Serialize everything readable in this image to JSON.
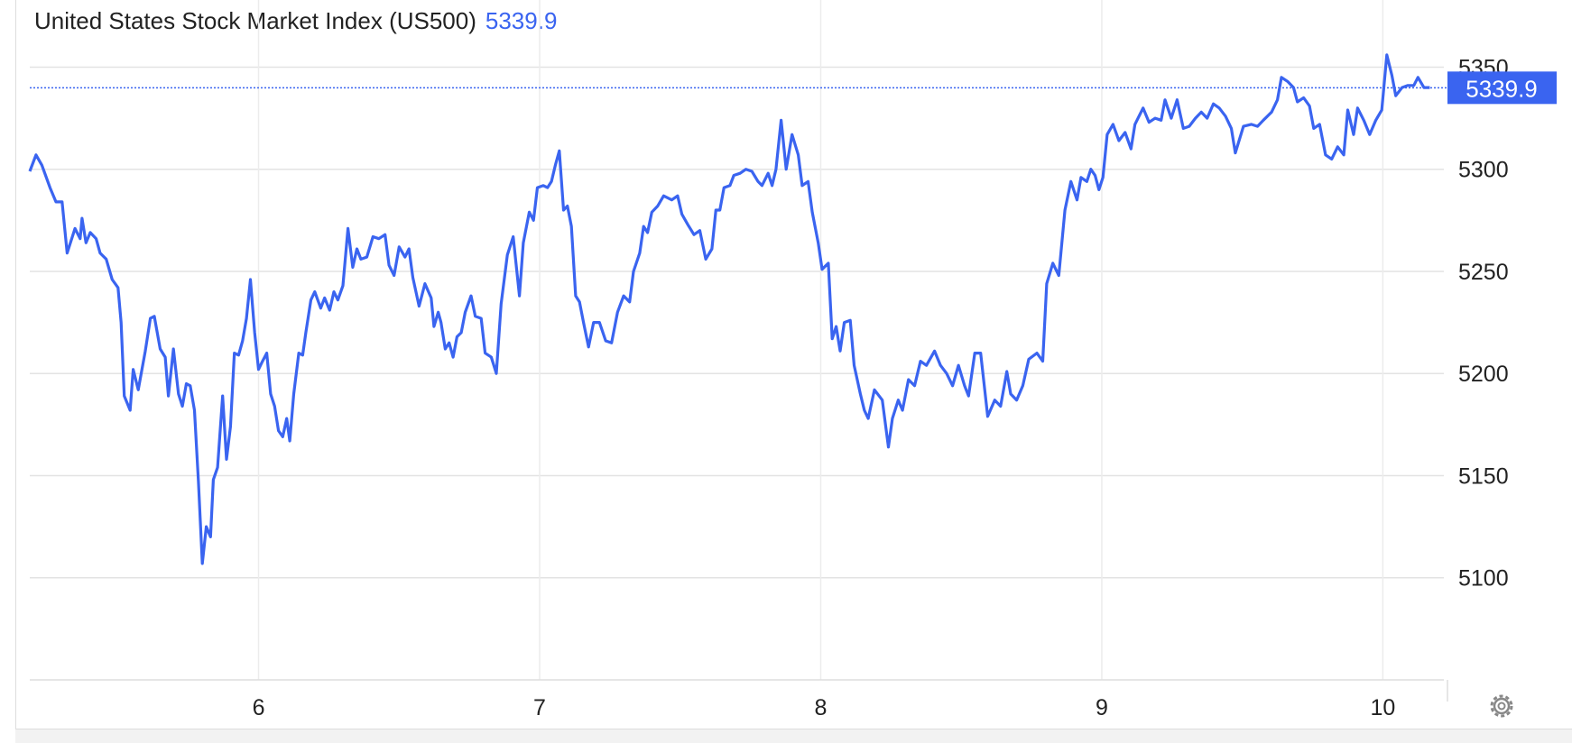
{
  "chart_data": {
    "type": "line",
    "title": "United States Stock Market Index (US500)",
    "last_value": 5339.9,
    "color": "#3a64f0",
    "grid": true,
    "xlim": [
      5.186,
      10.217
    ],
    "xticks": [
      6,
      7,
      8,
      9,
      10
    ],
    "ylim": [
      5050,
      5363
    ],
    "yticks": [
      5100,
      5150,
      5200,
      5250,
      5300,
      5350
    ],
    "series": [
      {
        "name": "US500",
        "color": "#3a64f0",
        "x": [
          5.186,
          5.208,
          5.229,
          5.258,
          5.279,
          5.301,
          5.319,
          5.347,
          5.365,
          5.372,
          5.386,
          5.401,
          5.422,
          5.436,
          5.458,
          5.479,
          5.5,
          5.511,
          5.522,
          5.543,
          5.554,
          5.572,
          5.597,
          5.615,
          5.629,
          5.65,
          5.668,
          5.679,
          5.697,
          5.715,
          5.729,
          5.743,
          5.757,
          5.772,
          5.786,
          5.8,
          5.814,
          5.829,
          5.839,
          5.854,
          5.872,
          5.886,
          5.9,
          5.914,
          5.929,
          5.943,
          5.957,
          5.971,
          5.986,
          6.0,
          6.014,
          6.029,
          6.043,
          6.057,
          6.071,
          6.086,
          6.1,
          6.111,
          6.125,
          6.143,
          6.157,
          6.168,
          6.186,
          6.2,
          6.221,
          6.235,
          6.253,
          6.268,
          6.282,
          6.3,
          6.318,
          6.335,
          6.35,
          6.364,
          6.385,
          6.407,
          6.428,
          6.45,
          6.464,
          6.482,
          6.5,
          6.521,
          6.535,
          6.549,
          6.571,
          6.592,
          6.614,
          6.624,
          6.639,
          6.649,
          6.664,
          6.678,
          6.692,
          6.706,
          6.721,
          6.735,
          6.756,
          6.771,
          6.792,
          6.806,
          6.828,
          6.846,
          6.863,
          6.885,
          6.906,
          6.928,
          6.942,
          6.963,
          6.978,
          6.992,
          7.013,
          7.028,
          7.042,
          7.056,
          7.07,
          7.085,
          7.099,
          7.113,
          7.128,
          7.142,
          7.156,
          7.174,
          7.192,
          7.213,
          7.235,
          7.256,
          7.277,
          7.299,
          7.32,
          7.334,
          7.356,
          7.37,
          7.384,
          7.399,
          7.42,
          7.441,
          7.47,
          7.491,
          7.506,
          7.527,
          7.549,
          7.57,
          7.591,
          7.613,
          7.627,
          7.641,
          7.656,
          7.677,
          7.691,
          7.713,
          7.734,
          7.755,
          7.777,
          7.791,
          7.813,
          7.827,
          7.841,
          7.859,
          7.877,
          7.898,
          7.92,
          7.934,
          7.955,
          7.97,
          7.991,
          8.005,
          8.027,
          8.041,
          8.055,
          8.069,
          8.084,
          8.105,
          8.119,
          8.141,
          8.155,
          8.169,
          8.191,
          8.219,
          8.241,
          8.255,
          8.276,
          8.291,
          8.312,
          8.334,
          8.355,
          8.376,
          8.405,
          8.426,
          8.448,
          8.469,
          8.49,
          8.512,
          8.526,
          8.548,
          8.569,
          8.594,
          8.619,
          8.64,
          8.662,
          8.676,
          8.697,
          8.719,
          8.74,
          8.769,
          8.79,
          8.804,
          8.826,
          8.847,
          8.869,
          8.89,
          8.912,
          8.926,
          8.947,
          8.961,
          8.976,
          8.99,
          9.004,
          9.019,
          9.04,
          9.061,
          9.083,
          9.104,
          9.118,
          9.147,
          9.168,
          9.19,
          9.211,
          9.225,
          9.247,
          9.268,
          9.29,
          9.311,
          9.333,
          9.354,
          9.375,
          9.397,
          9.418,
          9.44,
          9.461,
          9.475,
          9.504,
          9.532,
          9.554,
          9.575,
          9.604,
          9.625,
          9.639,
          9.661,
          9.682,
          9.696,
          9.718,
          9.739,
          9.754,
          9.775,
          9.796,
          9.818,
          9.839,
          9.861,
          9.875,
          9.896,
          9.91,
          9.932,
          9.953,
          9.975,
          9.996,
          10.014,
          10.032,
          10.046,
          10.068,
          10.089,
          10.11,
          10.125,
          10.146,
          10.167
        ],
        "values": [
          5299,
          5307,
          5302,
          5291,
          5284,
          5284,
          5259,
          5271,
          5266,
          5276,
          5264,
          5269,
          5266,
          5259,
          5256,
          5246,
          5242,
          5225,
          5189,
          5182,
          5202,
          5192,
          5211,
          5227,
          5228,
          5212,
          5208,
          5189,
          5212,
          5190,
          5184,
          5195,
          5194,
          5182,
          5147,
          5107,
          5125,
          5120,
          5148,
          5154,
          5189,
          5158,
          5174,
          5210,
          5209,
          5216,
          5227,
          5246,
          5220,
          5202,
          5206,
          5210,
          5190,
          5184,
          5172,
          5169,
          5178,
          5167,
          5190,
          5210,
          5209,
          5220,
          5236,
          5240,
          5232,
          5237,
          5231,
          5240,
          5236,
          5243,
          5271,
          5252,
          5261,
          5256,
          5257,
          5267,
          5266,
          5268,
          5253,
          5248,
          5262,
          5257,
          5261,
          5247,
          5233,
          5244,
          5237,
          5223,
          5230,
          5225,
          5212,
          5215,
          5208,
          5218,
          5220,
          5230,
          5238,
          5228,
          5227,
          5210,
          5208,
          5200,
          5234,
          5258,
          5267,
          5238,
          5264,
          5279,
          5275,
          5291,
          5292,
          5291,
          5294,
          5302,
          5309,
          5280,
          5282,
          5272,
          5238,
          5235,
          5225,
          5213,
          5225,
          5225,
          5216,
          5215,
          5230,
          5238,
          5235,
          5250,
          5259,
          5272,
          5269,
          5279,
          5282,
          5287,
          5285,
          5287,
          5278,
          5273,
          5268,
          5270,
          5256,
          5261,
          5280,
          5280,
          5291,
          5292,
          5297,
          5298,
          5300,
          5299,
          5294,
          5292,
          5298,
          5292,
          5300,
          5324,
          5300,
          5317,
          5307,
          5292,
          5294,
          5279,
          5264,
          5251,
          5254,
          5217,
          5223,
          5211,
          5225,
          5226,
          5204,
          5190,
          5182,
          5178,
          5192,
          5187,
          5164,
          5178,
          5187,
          5182,
          5197,
          5194,
          5206,
          5204,
          5211,
          5204,
          5200,
          5194,
          5204,
          5194,
          5189,
          5210,
          5210,
          5179,
          5187,
          5184,
          5201,
          5190,
          5187,
          5194,
          5207,
          5210,
          5206,
          5244,
          5254,
          5248,
          5280,
          5294,
          5285,
          5296,
          5294,
          5300,
          5297,
          5290,
          5296,
          5317,
          5322,
          5314,
          5318,
          5310,
          5322,
          5330,
          5323,
          5325,
          5324,
          5334,
          5325,
          5334,
          5320,
          5321,
          5325,
          5328,
          5325,
          5332,
          5330,
          5326,
          5320,
          5308,
          5321,
          5322,
          5321,
          5324,
          5328,
          5334,
          5345,
          5343,
          5340,
          5333,
          5335,
          5331,
          5320,
          5322,
          5307,
          5305,
          5311,
          5307,
          5329,
          5317,
          5330,
          5324,
          5317,
          5324,
          5329,
          5356,
          5346,
          5336,
          5340,
          5341,
          5341,
          5345,
          5340,
          5340
        ]
      }
    ]
  }
}
